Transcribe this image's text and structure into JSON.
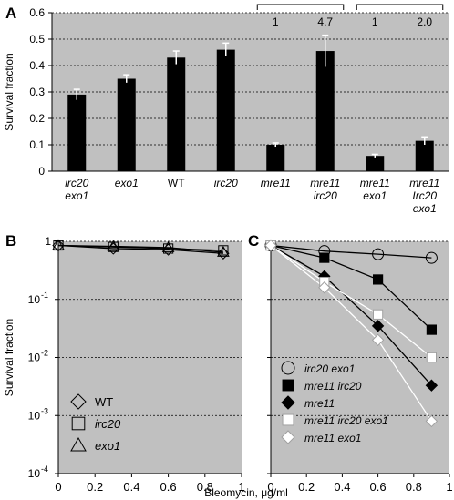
{
  "panels": {
    "a": {
      "letter": "A"
    },
    "b": {
      "letter": "B"
    },
    "c": {
      "letter": "C"
    }
  },
  "chart_data": [
    {
      "panel": "A",
      "type": "bar",
      "ylabel": "Survival fraction",
      "ylim": [
        0,
        0.6
      ],
      "yticks": [
        "0",
        "0.1",
        "0.2",
        "0.3",
        "0.4",
        "0.5",
        "0.6"
      ],
      "grid": true,
      "background": "#c0c0c0",
      "bar_color": "#000000",
      "error_bar_color": "#ffffff",
      "categories": [
        {
          "lines": [
            "irc20",
            "exo1"
          ],
          "italic": true
        },
        {
          "lines": [
            "exo1"
          ],
          "italic": true
        },
        {
          "lines": [
            "WT"
          ],
          "italic": false
        },
        {
          "lines": [
            "irc20"
          ],
          "italic": true
        },
        {
          "lines": [
            "mre11"
          ],
          "italic": true
        },
        {
          "lines": [
            "mre11",
            "irc20"
          ],
          "italic": true
        },
        {
          "lines": [
            "mre11",
            "exo1"
          ],
          "italic": true
        },
        {
          "lines": [
            "mre11",
            "Irc20",
            "exo1"
          ],
          "italic": true
        }
      ],
      "values": [
        0.29,
        0.35,
        0.43,
        0.46,
        0.1,
        0.455,
        0.058,
        0.115
      ],
      "errors": [
        0.02,
        0.015,
        0.025,
        0.025,
        0.007,
        0.06,
        0.006,
        0.015
      ],
      "annotations": [
        {
          "label": "1",
          "category_index": 4
        },
        {
          "label": "4.7",
          "category_index": 5
        },
        {
          "label": "1",
          "category_index": 6
        },
        {
          "label": "2.0",
          "category_index": 7
        }
      ],
      "brackets": [
        [
          4,
          5
        ],
        [
          6,
          7
        ]
      ]
    },
    {
      "panel": "B",
      "type": "line",
      "ylabel": "Survival fraction",
      "yscale": "log",
      "ylim": [
        0.0001,
        1
      ],
      "yticks": [
        {
          "base": "1",
          "exp": ""
        },
        {
          "base": "10",
          "exp": "-1"
        },
        {
          "base": "10",
          "exp": "-2"
        },
        {
          "base": "10",
          "exp": "-3"
        },
        {
          "base": "10",
          "exp": "-4"
        }
      ],
      "xlim": [
        0,
        1
      ],
      "xticks": [
        "0",
        "0.2",
        "0.4",
        "0.6",
        "0.8",
        "1"
      ],
      "grid": true,
      "background": "#c0c0c0",
      "legend": "bottom-left",
      "x": [
        0,
        0.3,
        0.6,
        0.9
      ],
      "series": [
        {
          "name": "WT",
          "marker": "diamond-open",
          "values": [
            0.85,
            0.75,
            0.72,
            0.62
          ]
        },
        {
          "name": "irc20",
          "marker": "square-open",
          "values": [
            0.85,
            0.8,
            0.75,
            0.7
          ]
        },
        {
          "name": "exo1",
          "marker": "triangle-open",
          "values": [
            0.85,
            0.82,
            0.78,
            0.65
          ]
        }
      ]
    },
    {
      "panel": "C",
      "type": "line",
      "yscale": "log",
      "ylim": [
        0.0001,
        1
      ],
      "xlim": [
        0,
        1
      ],
      "xticks": [
        "0",
        "0.2",
        "0.4",
        "0.6",
        "0.8",
        "1"
      ],
      "grid": true,
      "background": "#c0c0c0",
      "legend": "bottom-left",
      "x": [
        0,
        0.3,
        0.6,
        0.9
      ],
      "series": [
        {
          "name": "irc20 exo1",
          "marker": "circle-open",
          "line": "#000000",
          "values": [
            0.85,
            0.68,
            0.6,
            0.52
          ]
        },
        {
          "name": "mre11 irc20",
          "marker": "square-filled",
          "line": "#000000",
          "values": [
            0.85,
            0.52,
            0.22,
            0.03
          ]
        },
        {
          "name": "mre11",
          "marker": "diamond-filled",
          "line": "#000000",
          "values": [
            0.85,
            0.25,
            0.035,
            0.0033
          ]
        },
        {
          "name": "mre11 irc20 exo1",
          "marker": "square-white",
          "line": "#ffffff",
          "values": [
            0.85,
            0.2,
            0.055,
            0.01
          ]
        },
        {
          "name": "mre11 exo1",
          "marker": "diamond-white",
          "line": "#ffffff",
          "values": [
            0.85,
            0.16,
            0.02,
            0.0008
          ]
        }
      ]
    }
  ],
  "shared_xlabel": "Bleomycin, μg/ml"
}
